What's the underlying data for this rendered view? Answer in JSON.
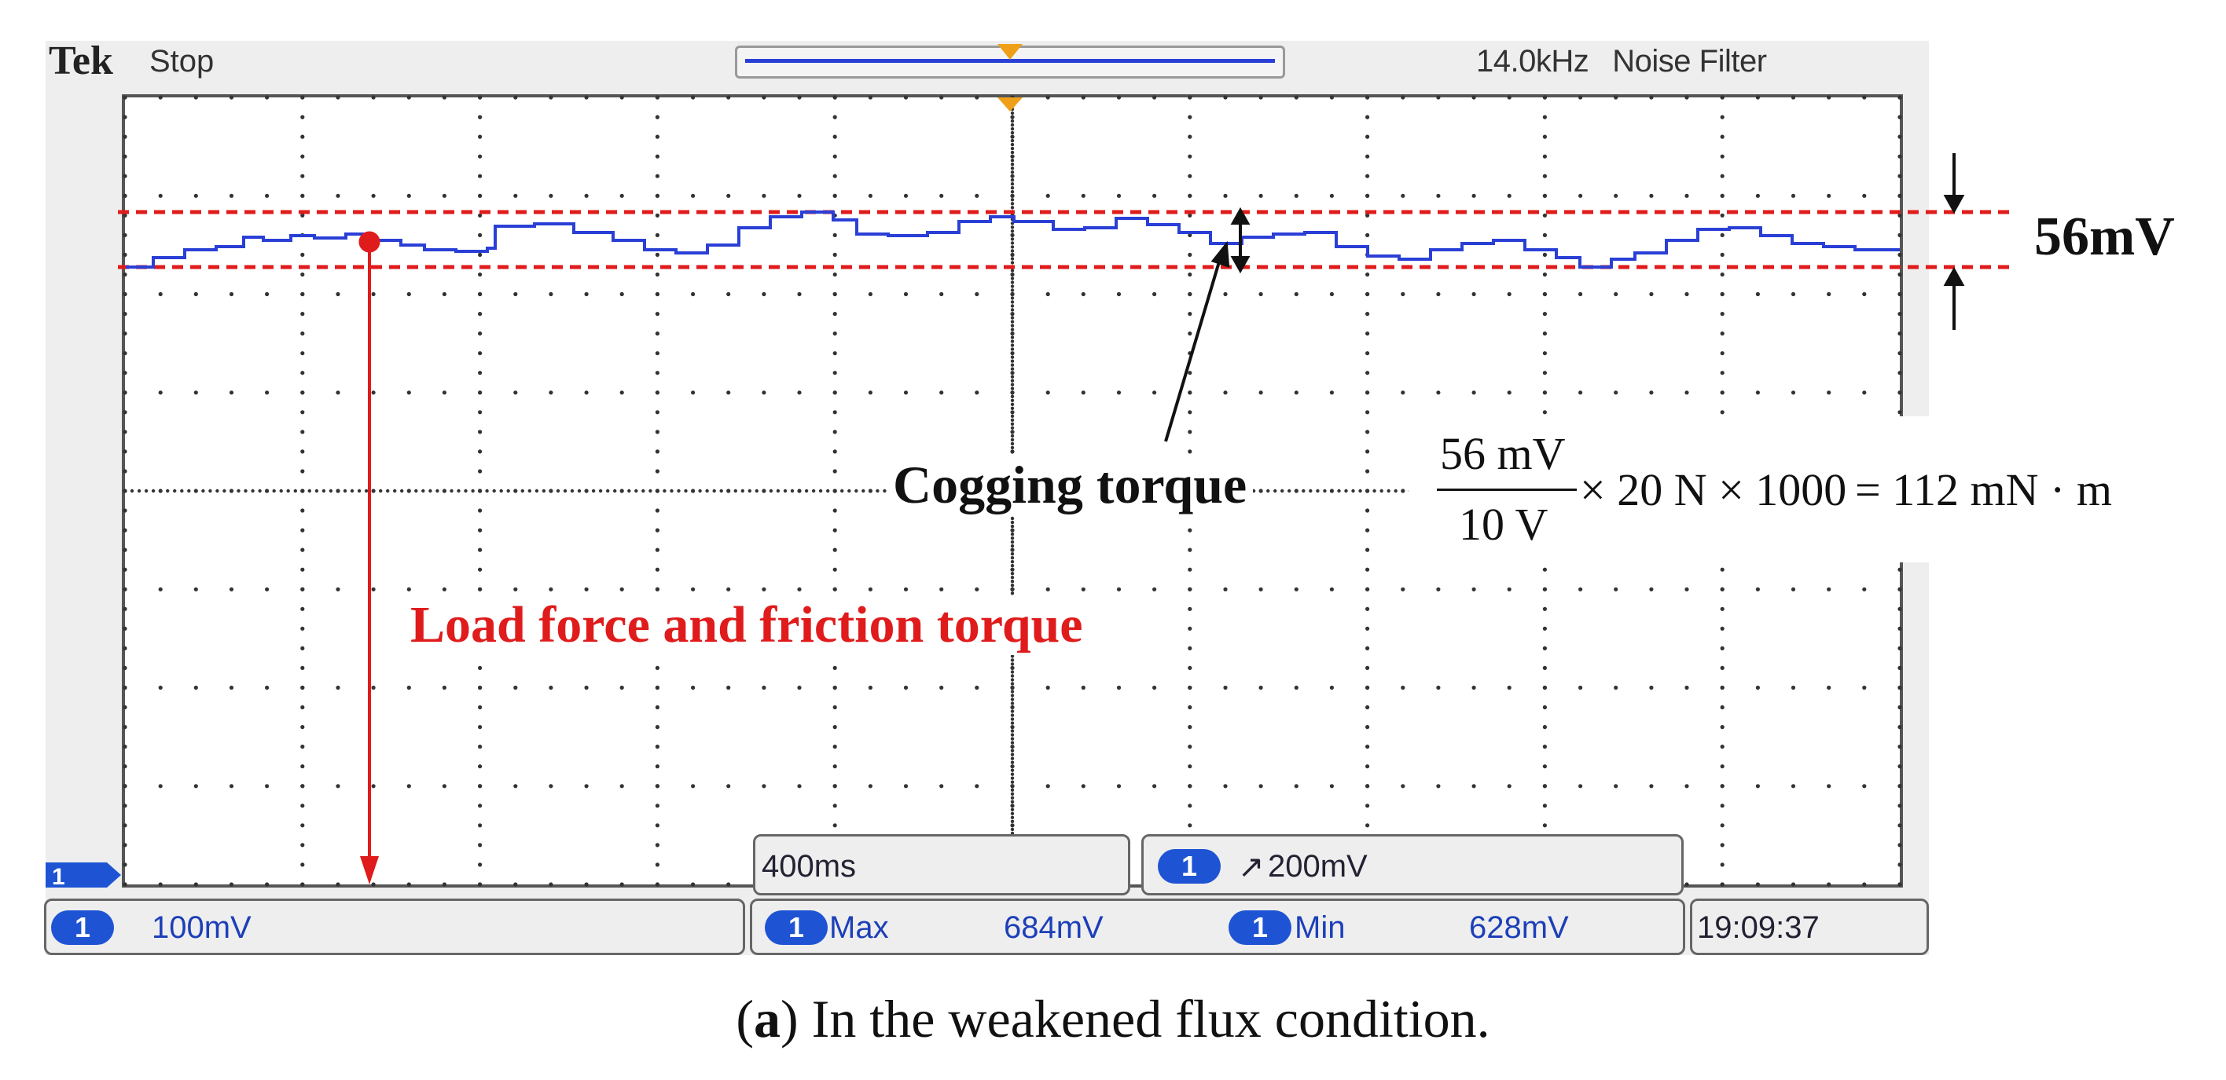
{
  "scope": {
    "brand": "Tek",
    "status": "Stop",
    "frequency": "14.0kHz",
    "filter": "Noise Filter"
  },
  "channel_marker": "1",
  "bottom": {
    "ch_scale": "100mV",
    "timebase": "400ms",
    "trigger": "200mV",
    "trigger_symbol": "↗",
    "max_label": "Max",
    "max_value": "684mV",
    "min_label": "Min",
    "min_value": "628mV",
    "time": "19:09:37"
  },
  "annotations": {
    "ripple": "56mV",
    "cogging": "Cogging torque",
    "load": "Load force and friction torque",
    "formula": {
      "numerator": "56 mV",
      "denominator": "10 V",
      "multiplier": "× 20 N × 1000",
      "result": "= 112 mN · m"
    }
  },
  "caption": {
    "label": "a",
    "text": " In the weakened flux condition."
  },
  "colors": {
    "trace": "#2a3fd6",
    "annotation_red": "#e01b1b",
    "grid_dot": "#333333",
    "trigger_marker": "#f0a018"
  }
}
